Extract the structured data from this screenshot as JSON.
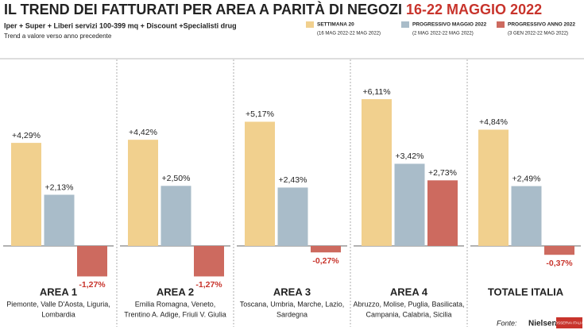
{
  "chart_data": {
    "type": "bar",
    "title": "IL TREND DEI FATTURATI PER AREA A PARITÀ DI NEGOZI",
    "title_date": "16-22 MAGGIO 2022",
    "subtitle": "Iper + Super + Liberi servizi 100-399 mq + Discount +Specialisti drug",
    "subtitle2": "Trend a valore verso anno precedente",
    "categories": [
      "AREA 1",
      "AREA 2",
      "AREA 3",
      "AREA 4",
      "TOTALE ITALIA"
    ],
    "descriptions": [
      [
        "Piemonte, Valle D'Aosta, Liguria,",
        "Lombardia"
      ],
      [
        "Emilia Romagna, Veneto,",
        "Trentino A. Adige, Friuli V. Giulia"
      ],
      [
        "Toscana, Umbria, Marche, Lazio,",
        "Sardegna"
      ],
      [
        "Abruzzo, Molise, Puglia, Basilicata,",
        "Campania, Calabria, Sicilia"
      ],
      null
    ],
    "series": [
      {
        "name": "SETTIMANA 20",
        "period": "(16 MAG 2022-22 MAG 2022)",
        "color": "#f1d08e",
        "values": [
          4.29,
          4.42,
          5.17,
          6.11,
          4.84
        ],
        "value_labels": [
          "+4,29%",
          "+4,42%",
          "+5,17%",
          "+6,11%",
          "+4,84%"
        ]
      },
      {
        "name": "PROGRESSIVO MAGGIO 2022",
        "period": "(2 MAG 2022-22 MAG 2022)",
        "color": "#a9bcc9",
        "values": [
          2.13,
          2.5,
          2.43,
          3.42,
          2.49
        ],
        "value_labels": [
          "+2,13%",
          "+2,50%",
          "+2,43%",
          "+3,42%",
          "+2,49%"
        ]
      },
      {
        "name": "PROGRESSIVO ANNO 2022",
        "period": "(3 GEN 2022-22 MAG 2022)",
        "color": "#cd6a5f",
        "values": [
          -1.27,
          -1.27,
          -0.27,
          2.73,
          -0.37
        ],
        "value_labels": [
          "-1,27%",
          "-1,27%",
          "-0,27%",
          "+2,73%",
          "-0,37%"
        ]
      }
    ],
    "source_label": "Fonte:",
    "source": "NielsenIQ",
    "source2": "OSSERVA ITALIA"
  }
}
